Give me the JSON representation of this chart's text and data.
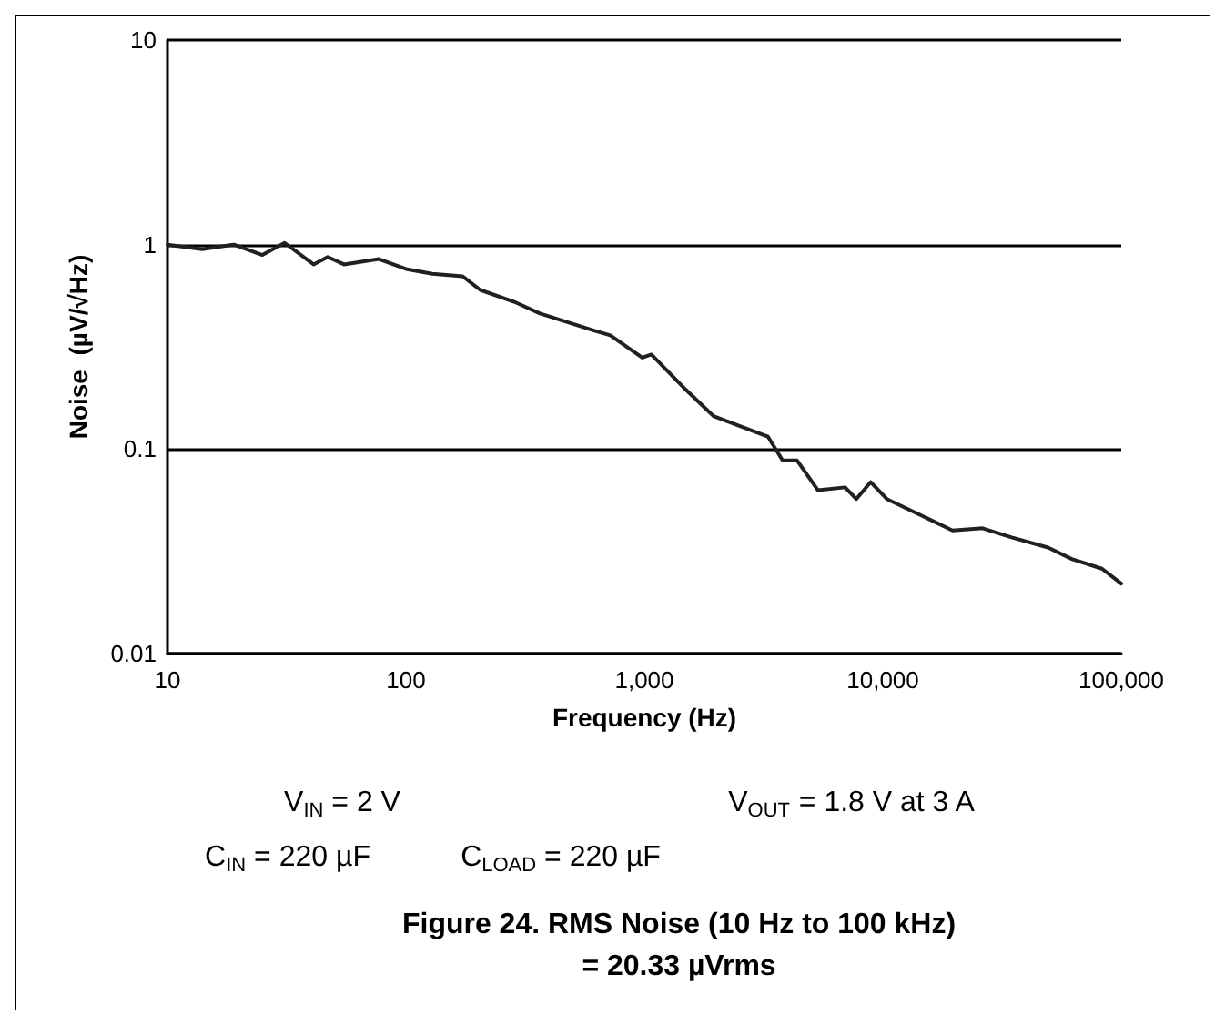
{
  "chart_data": {
    "type": "line",
    "title": "Figure 24. RMS Noise (10 Hz to 100 kHz)",
    "subtitle": "= 20.33 µVrms",
    "xlabel": "Frequency (Hz)",
    "ylabel": "Noise  (µV/√Hz)",
    "annotations": [
      "V$_{IN}$ = 2 V",
      "V$_{OUT}$ = 1.8 V at 3 A",
      "C$_{IN}$ = 220 µF",
      "C$_{LOAD}$ = 220 µF"
    ],
    "log": "xy",
    "grid": "y",
    "marker": "none",
    "line_style": "solid",
    "xlim": [
      10,
      100000
    ],
    "xticks": [
      10,
      100,
      {
        "value": 1000,
        "label": "1,000"
      },
      {
        "value": 10000,
        "label": "10,000"
      },
      {
        "value": 100000,
        "label": "100,000"
      }
    ],
    "ylim": [
      0.01,
      10
    ],
    "yticks": [
      0.01,
      0.1,
      1,
      10
    ],
    "series": [
      {
        "color": "#231f20",
        "x": [
          10,
          14,
          19,
          25,
          31,
          41,
          47,
          55,
          77,
          100,
          129,
          173,
          205,
          290,
          365,
          615,
          720,
          980,
          1070,
          1460,
          1950,
          2830,
          3300,
          3800,
          4370,
          5340,
          6950,
          7740,
          8900,
          10400,
          14700,
          19600,
          26200,
          34700,
          49300,
          62000,
          83000,
          100000
        ],
        "values": [
          1.0,
          0.95,
          1.0,
          0.89,
          1.02,
          0.8,
          0.87,
          0.8,
          0.85,
          0.76,
          0.72,
          0.7,
          0.6,
          0.52,
          0.46,
          0.38,
          0.36,
          0.28,
          0.29,
          0.2,
          0.145,
          0.123,
          0.115,
          0.088,
          0.088,
          0.063,
          0.065,
          0.057,
          0.069,
          0.057,
          0.047,
          0.04,
          0.041,
          0.037,
          0.033,
          0.029,
          0.026,
          0.022
        ]
      }
    ]
  }
}
